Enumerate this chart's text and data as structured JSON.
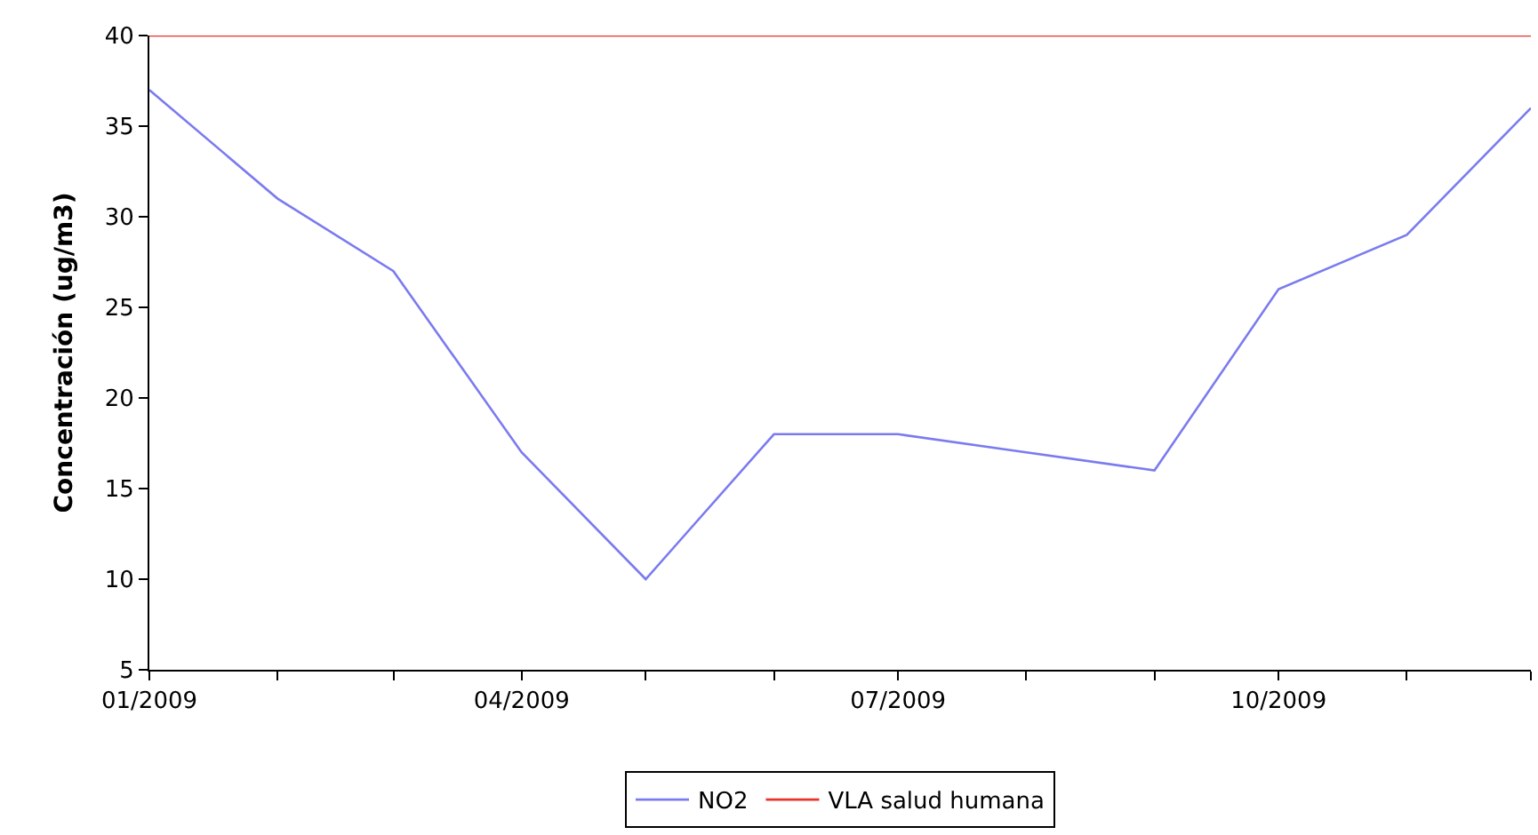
{
  "chart_data": {
    "type": "line",
    "ylabel": "Concentración (ug/m3)",
    "x": [
      "2009-01",
      "2009-02",
      "2009-03",
      "2009-04",
      "2009-05",
      "2009-06",
      "2009-07",
      "2009-08",
      "2009-09",
      "2009-10",
      "2009-11",
      "2009-12"
    ],
    "series": [
      {
        "name": "NO2",
        "color": "#7b7bf0",
        "values": [
          37,
          31,
          27,
          17,
          10,
          18,
          18,
          17,
          16,
          26,
          29,
          36
        ]
      },
      {
        "name": "VLA salud humana",
        "color": "#e8322a",
        "values": [
          40,
          40,
          40,
          40,
          40,
          40,
          40,
          40,
          40,
          40,
          40,
          40
        ]
      }
    ],
    "xlim": [
      "2009-01",
      "2009-12"
    ],
    "xticks": [
      {
        "value": "2009-01",
        "label": "01/2009"
      },
      {
        "value": "2009-02",
        "label": null
      },
      {
        "value": "2009-03",
        "label": null
      },
      {
        "value": "2009-04",
        "label": "04/2009"
      },
      {
        "value": "2009-05",
        "label": null
      },
      {
        "value": "2009-06",
        "label": null
      },
      {
        "value": "2009-07",
        "label": "07/2009"
      },
      {
        "value": "2009-08",
        "label": null
      },
      {
        "value": "2009-09",
        "label": null
      },
      {
        "value": "2009-10",
        "label": "10/2009"
      },
      {
        "value": "2009-11",
        "label": null
      },
      {
        "value": "2009-12",
        "label": null
      }
    ],
    "ylim": [
      5,
      40
    ],
    "yticks": [
      5,
      10,
      15,
      20,
      25,
      30,
      35,
      40
    ],
    "grid": false,
    "legend": "bottom"
  }
}
